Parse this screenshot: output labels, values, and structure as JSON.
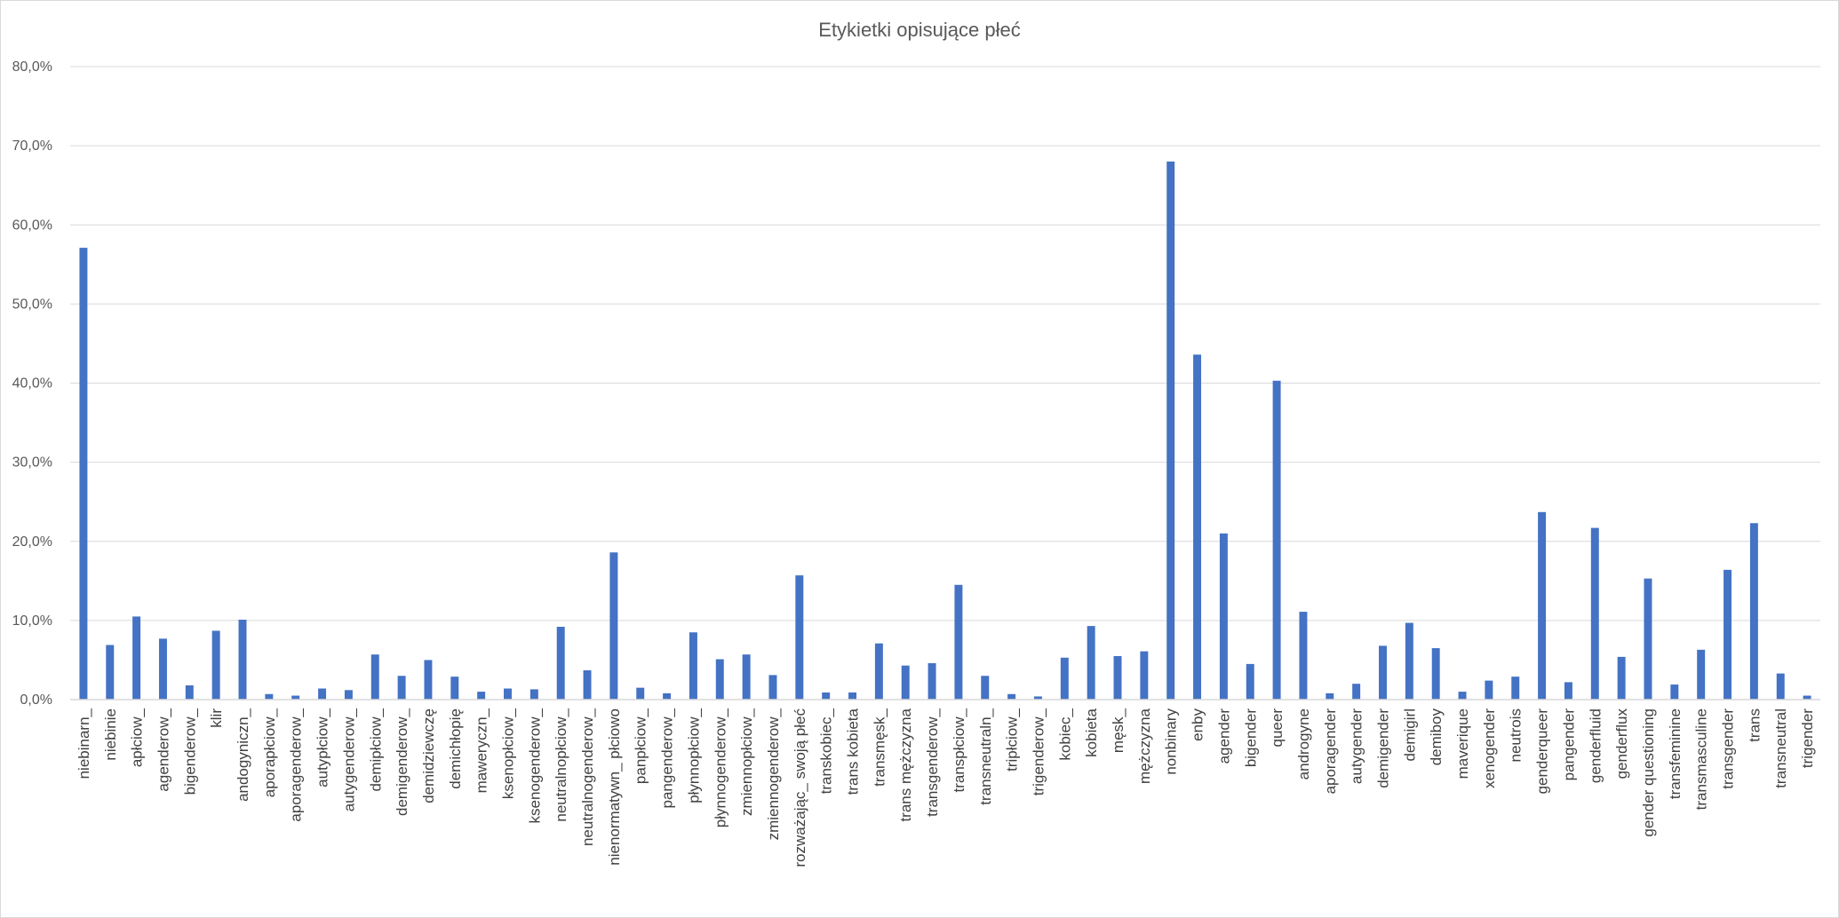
{
  "chart_data": {
    "type": "bar",
    "title": "Etykietki opisujące płeć",
    "xlabel": "",
    "ylabel": "",
    "ylim": [
      0,
      80
    ],
    "y_tick_labels": [
      "0,0%",
      "10,0%",
      "20,0%",
      "30,0%",
      "40,0%",
      "50,0%",
      "60,0%",
      "70,0%",
      "80,0%"
    ],
    "grid": true,
    "legend": "none",
    "bar_color": "#4472c4",
    "categories": [
      "niebinarn_",
      "niebinie",
      "apłciow_",
      "agenderow_",
      "bigenderow_",
      "klir",
      "andogyniczn_",
      "aporapłciow_",
      "aporagenderow_",
      "autypłciow_",
      "autygenderow_",
      "demipłciow_",
      "demigenderow_",
      "demidziewczę",
      "demichłopię",
      "maweryczn_",
      "ksenopłciow_",
      "ksenogenderow_",
      "neutralnopłciow_",
      "neutralnogenderow_",
      "nienormatywn_ płciowo",
      "panpłciow_",
      "pangenderow_",
      "płynnopłciow_",
      "płynnogenderow_",
      "zmiennopłciow_",
      "zmiennogenderow_",
      "rozważając_ swoją płeć",
      "transkobiec_",
      "trans kobieta",
      "transmęsk_",
      "trans mężczyzna",
      "transgenderow_",
      "transpłciow_",
      "transneutraln_",
      "tripłciow_",
      "trigenderow_",
      "kobiec_",
      "kobieta",
      "męsk_",
      "mężczyzna",
      "nonbinary",
      "enby",
      "agender",
      "bigender",
      "queer",
      "androgyne",
      "aporagender",
      "autygender",
      "demigender",
      "demigirl",
      "demiboy",
      "maverique",
      "xenogender",
      "neutrois",
      "genderqueer",
      "pangender",
      "genderfluid",
      "genderflux",
      "gender questioning",
      "transfeminine",
      "transmasculine",
      "transgender",
      "trans",
      "transneutral",
      "trigender"
    ],
    "values": [
      57.1,
      6.9,
      10.5,
      7.7,
      1.8,
      8.7,
      10.1,
      0.7,
      0.5,
      1.4,
      1.2,
      5.7,
      3.0,
      5.0,
      2.9,
      1.0,
      1.4,
      1.3,
      9.2,
      3.7,
      18.6,
      1.5,
      0.8,
      8.5,
      5.1,
      5.7,
      3.1,
      15.7,
      0.9,
      0.9,
      7.1,
      4.3,
      4.6,
      14.5,
      3.0,
      0.7,
      0.4,
      5.3,
      9.3,
      5.5,
      6.1,
      68.0,
      43.6,
      21.0,
      4.5,
      40.3,
      11.1,
      0.8,
      2.0,
      6.8,
      9.7,
      6.5,
      1.0,
      2.4,
      2.9,
      23.7,
      2.2,
      21.7,
      5.4,
      15.3,
      1.9,
      6.3,
      16.4,
      22.3,
      3.3,
      0.5
    ]
  }
}
